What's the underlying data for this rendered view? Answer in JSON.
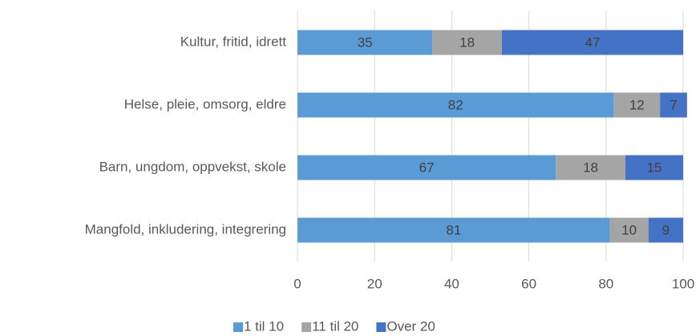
{
  "chart_data": {
    "type": "bar",
    "orientation": "horizontal",
    "stacked": true,
    "categories": [
      "Kultur, fritid, idrett",
      "Helse, pleie, omsorg, eldre",
      "Barn, ungdom, oppvekst, skole",
      "Mangfold, inkludering, integrering"
    ],
    "series": [
      {
        "name": "1 til 10",
        "color": "#5b9bd5",
        "values": [
          35,
          82,
          67,
          81
        ]
      },
      {
        "name": "11 til 20",
        "color": "#a5a5a5",
        "values": [
          18,
          12,
          18,
          10
        ]
      },
      {
        "name": "Over 20",
        "color": "#4472c4",
        "values": [
          47,
          7,
          15,
          9
        ]
      }
    ],
    "xlim": [
      0,
      100
    ],
    "xticks": [
      0,
      20,
      40,
      60,
      80,
      100
    ],
    "grid": true,
    "legend": "bottom"
  }
}
